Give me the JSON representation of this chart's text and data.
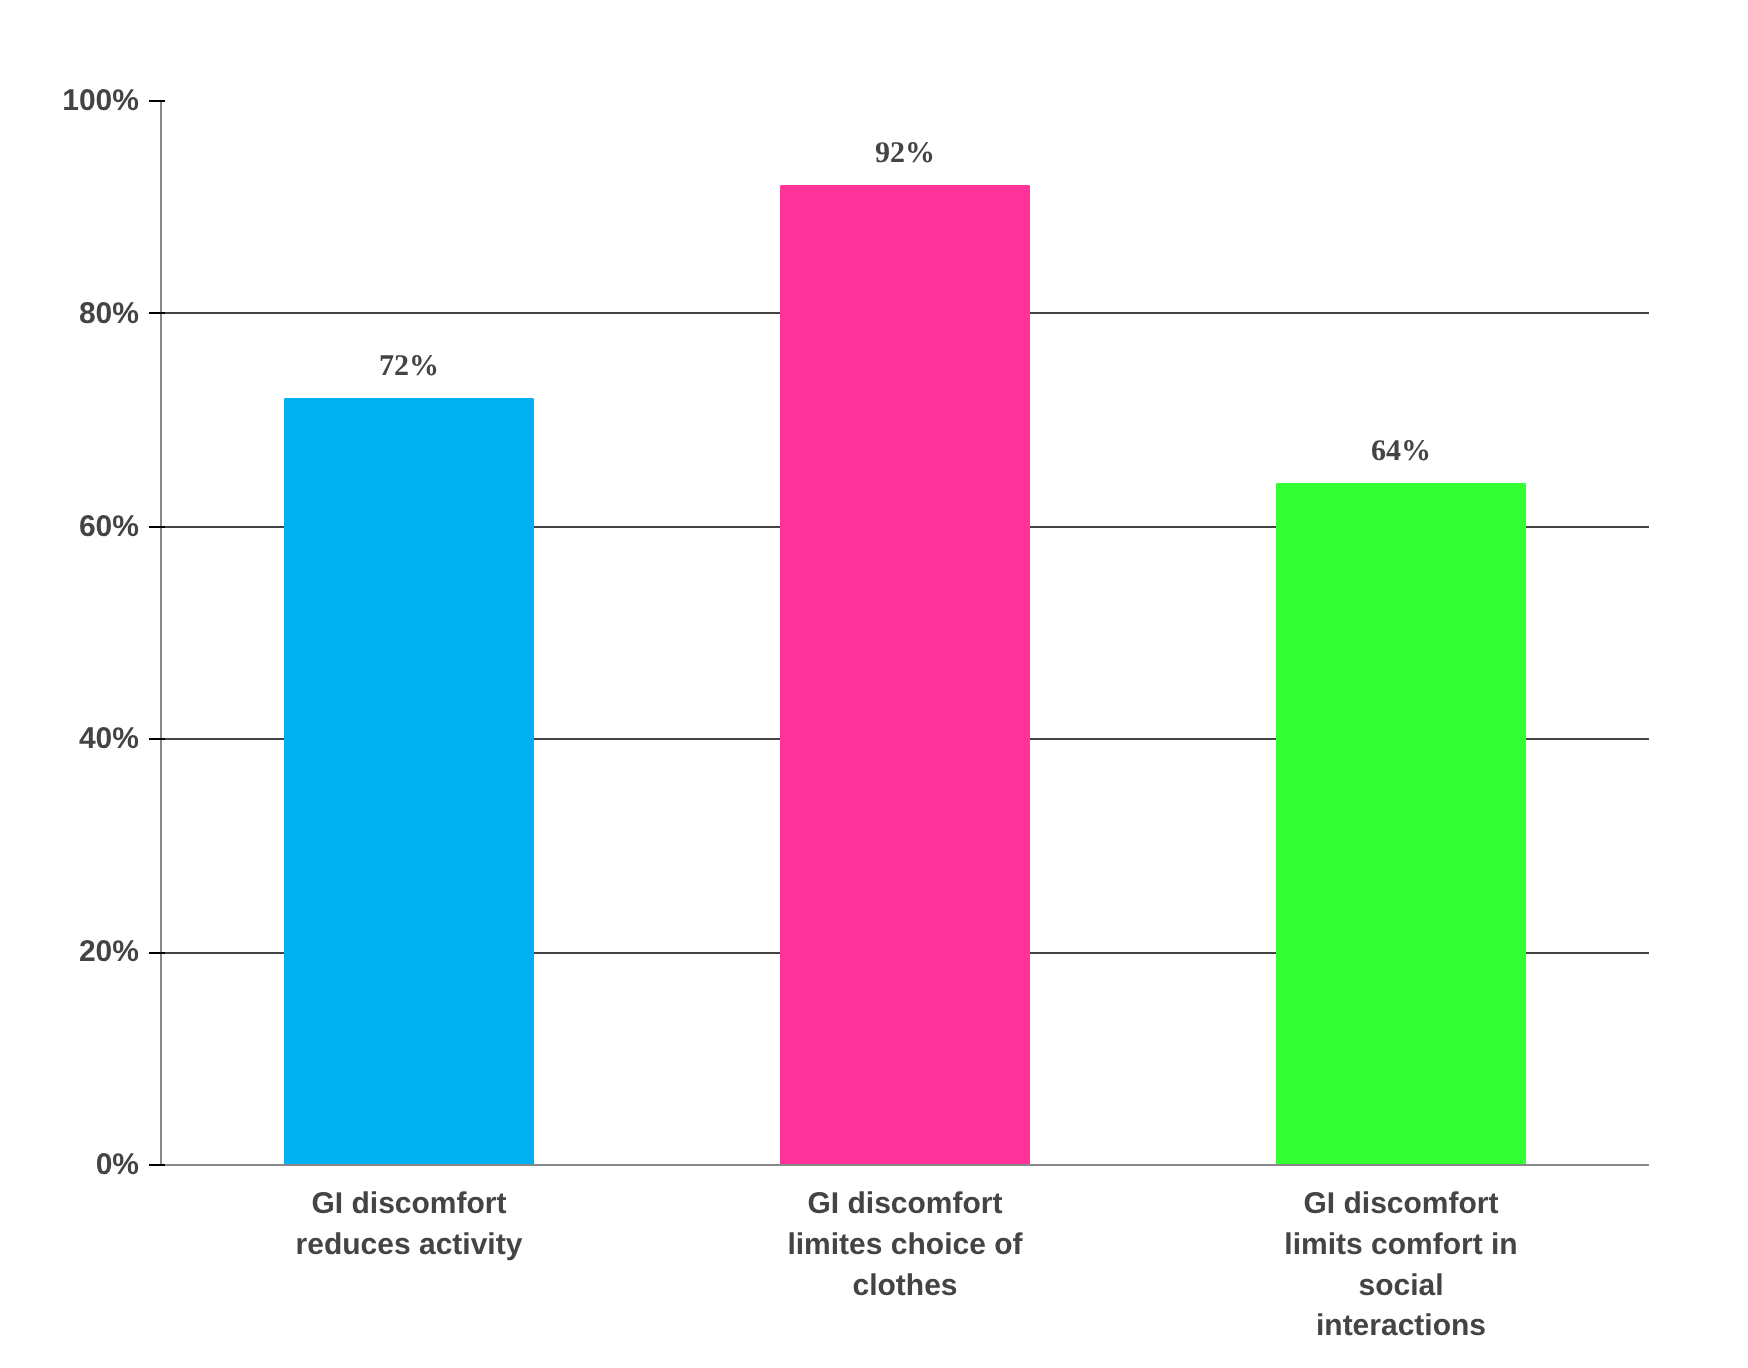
{
  "chart_data": {
    "type": "bar",
    "categories": [
      "GI discomfort reduces activity",
      "GI discomfort limites choice of clothes",
      "GI discomfort limits comfort in social interactions"
    ],
    "values": [
      72,
      92,
      64
    ],
    "colors": [
      "#00b0f0",
      "#ff3399",
      "#33ff33"
    ],
    "value_labels": [
      "72%",
      "92%",
      "64%"
    ],
    "ylim": [
      0,
      100
    ],
    "yticks": [
      {
        "value": 0,
        "label": "0%"
      },
      {
        "value": 20,
        "label": "20%"
      },
      {
        "value": 40,
        "label": "40%"
      },
      {
        "value": 60,
        "label": "60%"
      },
      {
        "value": 80,
        "label": "80%"
      },
      {
        "value": 100,
        "label": "100%"
      }
    ],
    "grid": "y"
  }
}
